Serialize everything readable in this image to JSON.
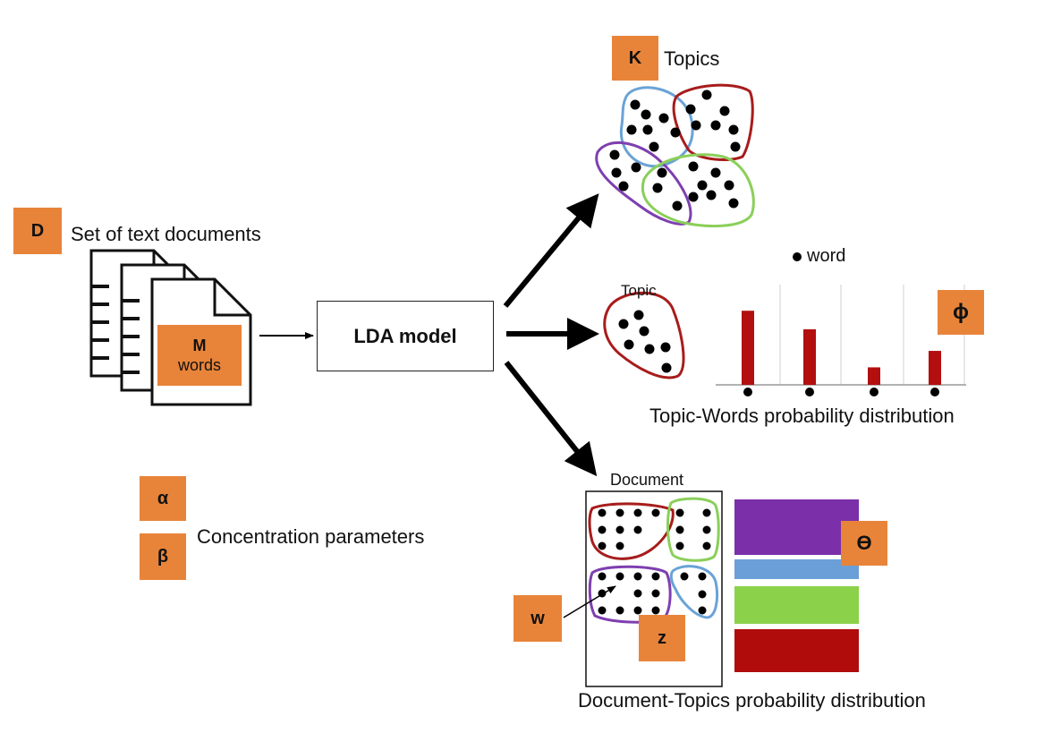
{
  "documents": {
    "badge": "D",
    "label": "Set of text documents",
    "words_badge_letter": "M",
    "words_badge_text": "words"
  },
  "model": {
    "label": "LDA model"
  },
  "topics": {
    "badge": "K",
    "label": "Topics"
  },
  "topic_words": {
    "legend_label": "word",
    "topic_label": "Topic",
    "badge": "ϕ",
    "caption": "Topic-Words probability distribution",
    "bar_color": "#b30f0f",
    "bars": [
      0.72,
      0.54,
      0.17,
      0.33
    ]
  },
  "doc_topics": {
    "doc_label": "Document",
    "theta_badge": "ϴ",
    "w_badge": "w",
    "z_badge": "z",
    "caption": "Document-Topics probability distribution",
    "stack_colors": [
      "#7b2fa8",
      "#6a9fd8",
      "#8bd14a",
      "#b00c0c"
    ]
  },
  "params": {
    "alpha_badge": "α",
    "beta_badge": "β",
    "label": "Concentration parameters"
  },
  "colors": {
    "badge": "#e8843a",
    "topic_red": "#a81c1c",
    "topic_blue": "#6aa3d6",
    "topic_purple": "#7e3fb0",
    "topic_green": "#8bcf5a"
  }
}
